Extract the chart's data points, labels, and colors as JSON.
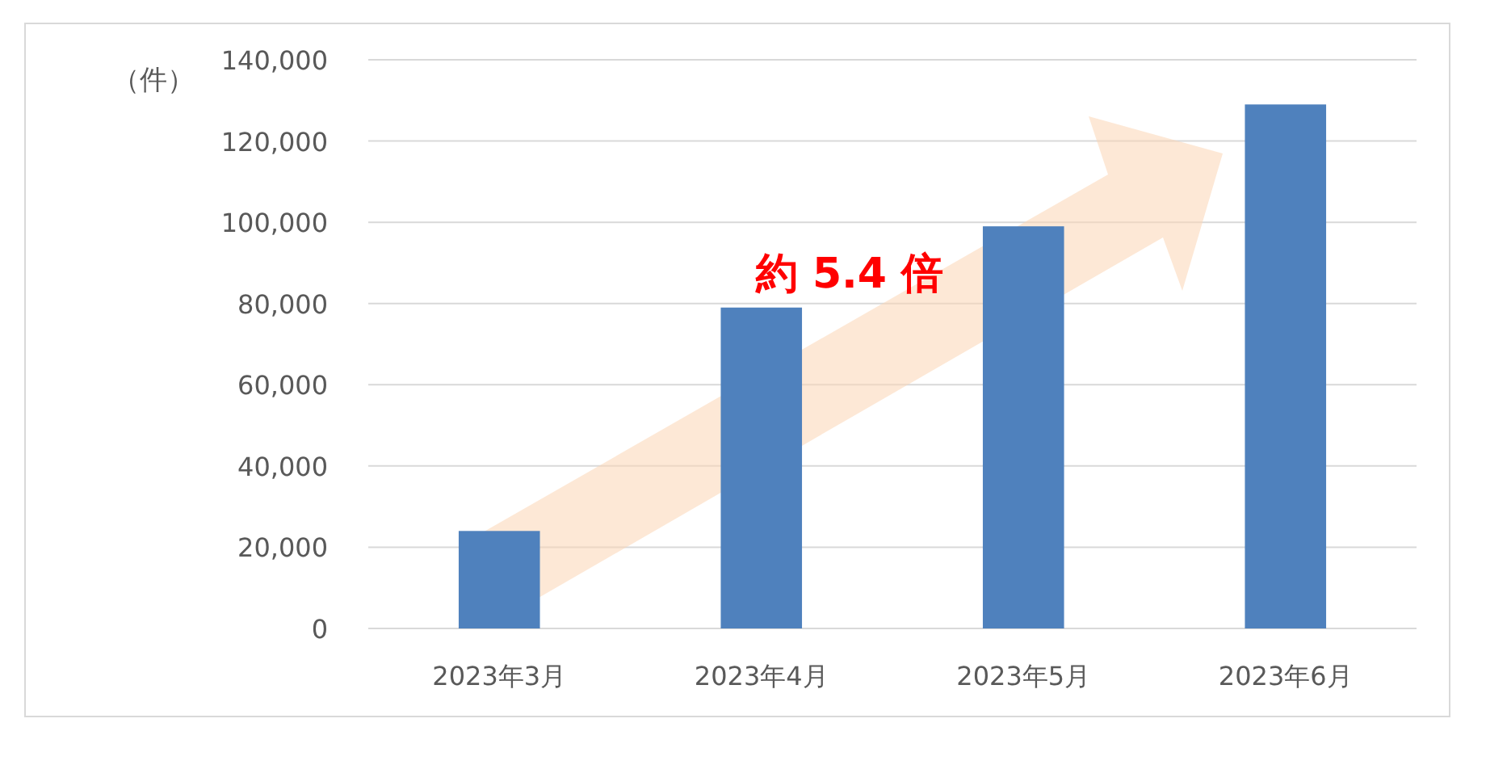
{
  "chart_data": {
    "type": "bar",
    "ylabel": "（件）",
    "categories": [
      "2023年3月",
      "2023年4月",
      "2023年5月",
      "2023年6月"
    ],
    "values": [
      24000,
      79000,
      99000,
      129000
    ],
    "color": "#4f81bd",
    "ylim": [
      0,
      140000
    ],
    "yticks": [
      {
        "value": 0,
        "label": "0"
      },
      {
        "value": 20000,
        "label": "20,000"
      },
      {
        "value": 40000,
        "label": "40,000"
      },
      {
        "value": 60000,
        "label": "60,000"
      },
      {
        "value": 80000,
        "label": "80,000"
      },
      {
        "value": 100000,
        "label": "100,000"
      },
      {
        "value": 120000,
        "label": "120,000"
      },
      {
        "value": 140000,
        "label": "140,000"
      }
    ],
    "grid": "y",
    "annotations": [
      "約 5.4 倍"
    ]
  }
}
